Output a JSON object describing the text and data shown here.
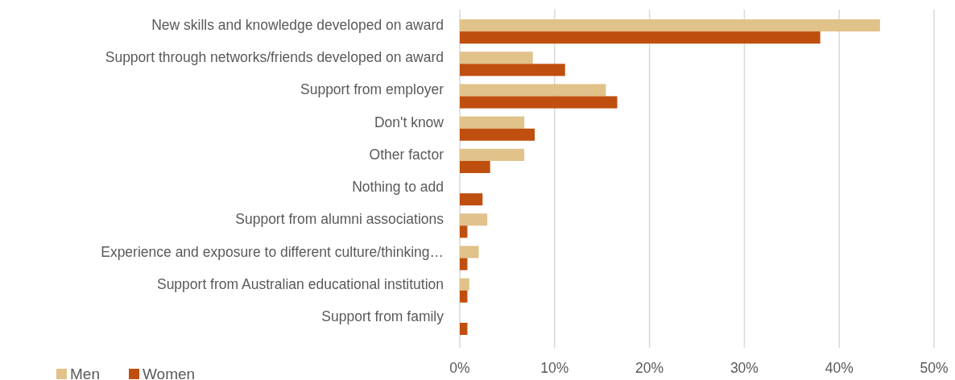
{
  "chart_data": {
    "type": "bar",
    "orientation": "horizontal",
    "categories": [
      "New skills and knowledge developed on award",
      "Support through networks/friends developed on award",
      "Support from employer",
      "Don't know",
      "Other factor",
      "Nothing to add",
      "Support from alumni associations",
      "Experience and exposure to different culture/thinking…",
      "Support from Australian educational institution",
      "Support from family"
    ],
    "series": [
      {
        "name": "Men",
        "color": "#e0c28a",
        "values": [
          44.3,
          7.7,
          15.4,
          6.8,
          6.8,
          null,
          2.9,
          2.0,
          1.0,
          null
        ]
      },
      {
        "name": "Women",
        "color": "#bf4f0e",
        "values": [
          38.0,
          11.1,
          16.6,
          7.9,
          3.2,
          2.4,
          0.8,
          0.8,
          0.8,
          0.8
        ]
      }
    ],
    "xlim": [
      0,
      50
    ],
    "xticks": [
      {
        "value": 0,
        "label": "0%"
      },
      {
        "value": 10,
        "label": "10%"
      },
      {
        "value": 20,
        "label": "20%"
      },
      {
        "value": 30,
        "label": "30%"
      },
      {
        "value": 40,
        "label": "40%"
      },
      {
        "value": 50,
        "label": "50%"
      }
    ],
    "grid": "x",
    "legend": "bottom left"
  }
}
